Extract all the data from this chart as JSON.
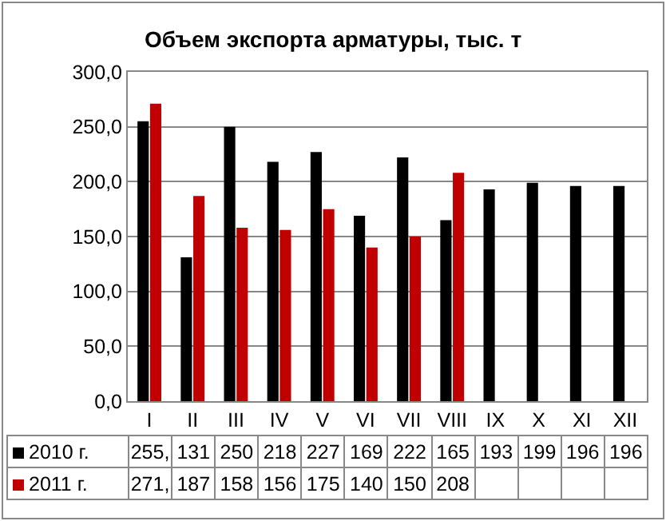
{
  "chart_data": {
    "type": "bar",
    "title": "Объем экспорта арматуры, тыс. т",
    "categories": [
      "I",
      "II",
      "III",
      "IV",
      "V",
      "VI",
      "VII",
      "VIII",
      "IX",
      "X",
      "XI",
      "XII"
    ],
    "series": [
      {
        "name": "2010 г.",
        "color": "#000000",
        "values": [
          255,
          131,
          250,
          218,
          227,
          169,
          222,
          165,
          193,
          199,
          196,
          196
        ],
        "value_labels": [
          "255,",
          "131",
          "250",
          "218",
          "227",
          "169",
          "222",
          "165",
          "193",
          "199",
          "196",
          "196"
        ]
      },
      {
        "name": "2011 г.",
        "color": "#c00000",
        "values": [
          271,
          187,
          158,
          156,
          175,
          140,
          150,
          208,
          null,
          null,
          null,
          null
        ],
        "value_labels": [
          "271,",
          "187",
          "158",
          "156",
          "175",
          "140",
          "150",
          "208",
          null,
          null,
          null,
          null
        ]
      }
    ],
    "ylim": [
      0,
      300
    ],
    "yticks": [
      {
        "value": 0,
        "label": "0,0"
      },
      {
        "value": 50,
        "label": "50,0"
      },
      {
        "value": 100,
        "label": "100,0"
      },
      {
        "value": 150,
        "label": "150,0"
      },
      {
        "value": 200,
        "label": "200,0"
      },
      {
        "value": 250,
        "label": "250,0"
      },
      {
        "value": 300,
        "label": "300,0"
      }
    ],
    "grid": "y",
    "legend": "bottom"
  }
}
